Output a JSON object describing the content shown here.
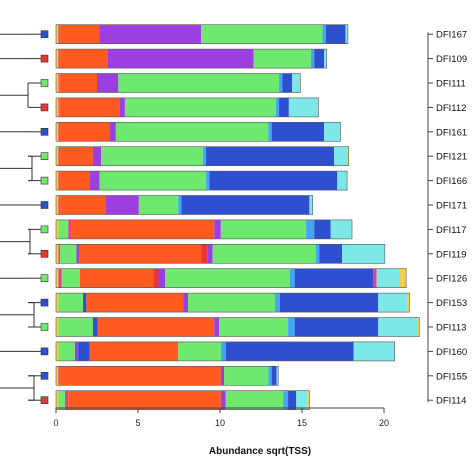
{
  "chart_data": {
    "type": "bar",
    "orientation": "horizontal",
    "stacked": true,
    "xlabel": "Abundance sqrt(TSS)",
    "ylabel": "",
    "xlim": [
      0,
      22
    ],
    "xticks": [
      "0",
      "5",
      "10",
      "15",
      "20"
    ],
    "grid": false,
    "legend": "none",
    "samples": [
      {
        "label": "DFI167",
        "marker": "#2f4fd1",
        "segments": [
          {
            "c": "#f2cf4a",
            "v": 0.15
          },
          {
            "c": "#e83e8c",
            "v": 0.1
          },
          {
            "c": "#ff5a1f",
            "v": 2.4
          },
          {
            "c": "#9b3fe0",
            "v": 6.2
          },
          {
            "c": "#6ee86e",
            "v": 7.4
          },
          {
            "c": "#42a8f0",
            "v": 0.2
          },
          {
            "c": "#2f4fd1",
            "v": 1.2
          },
          {
            "c": "#7ce8e8",
            "v": 0.15
          }
        ]
      },
      {
        "label": "DFI109",
        "marker": "#e83535",
        "segments": [
          {
            "c": "#f2cf4a",
            "v": 0.15
          },
          {
            "c": "#e83e8c",
            "v": 0.1
          },
          {
            "c": "#ff5a1f",
            "v": 2.9
          },
          {
            "c": "#9b3fe0",
            "v": 8.9
          },
          {
            "c": "#6ee86e",
            "v": 3.5
          },
          {
            "c": "#42a8f0",
            "v": 0.2
          },
          {
            "c": "#2f4fd1",
            "v": 0.6
          },
          {
            "c": "#7ce8e8",
            "v": 0.15
          }
        ]
      },
      {
        "label": "DFI111",
        "marker": "#6ee86e",
        "segments": [
          {
            "c": "#f2cf4a",
            "v": 0.15
          },
          {
            "c": "#e83e8c",
            "v": 0.05
          },
          {
            "c": "#ff5a1f",
            "v": 2.3
          },
          {
            "c": "#9b3fe0",
            "v": 1.3
          },
          {
            "c": "#6ee86e",
            "v": 9.8
          },
          {
            "c": "#42a8f0",
            "v": 0.2
          },
          {
            "c": "#2f4fd1",
            "v": 0.6
          },
          {
            "c": "#7ce8e8",
            "v": 0.5
          }
        ]
      },
      {
        "label": "DFI112",
        "marker": "#e83535",
        "segments": [
          {
            "c": "#f2cf4a",
            "v": 0.15
          },
          {
            "c": "#e83e8c",
            "v": 0.05
          },
          {
            "c": "#ff5a1f",
            "v": 3.7
          },
          {
            "c": "#9b3fe0",
            "v": 0.3
          },
          {
            "c": "#6ee86e",
            "v": 9.2
          },
          {
            "c": "#42a8f0",
            "v": 0.2
          },
          {
            "c": "#2f4fd1",
            "v": 0.6
          },
          {
            "c": "#7ce8e8",
            "v": 1.8
          }
        ]
      },
      {
        "label": "DFI161",
        "marker": "#2f4fd1",
        "segments": [
          {
            "c": "#f2cf4a",
            "v": 0.15
          },
          {
            "c": "#e83e8c",
            "v": 0.1
          },
          {
            "c": "#ff5a1f",
            "v": 3.0
          },
          {
            "c": "#9b3fe0",
            "v": 0.4
          },
          {
            "c": "#6ee86e",
            "v": 9.3
          },
          {
            "c": "#42a8f0",
            "v": 0.2
          },
          {
            "c": "#2f4fd1",
            "v": 3.2
          },
          {
            "c": "#7ce8e8",
            "v": 1.0
          }
        ]
      },
      {
        "label": "DFI121",
        "marker": "#6ee86e",
        "segments": [
          {
            "c": "#f2cf4a",
            "v": 0.15
          },
          {
            "c": "#e83e8c",
            "v": 0.1
          },
          {
            "c": "#ff5a1f",
            "v": 2.0
          },
          {
            "c": "#9b3fe0",
            "v": 0.5
          },
          {
            "c": "#6ee86e",
            "v": 6.2
          },
          {
            "c": "#42a8f0",
            "v": 0.2
          },
          {
            "c": "#2f4fd1",
            "v": 7.8
          },
          {
            "c": "#7ce8e8",
            "v": 0.8
          },
          {
            "c": "#f2cf4a",
            "v": 0.1
          }
        ]
      },
      {
        "label": "DFI166",
        "marker": "#6ee86e",
        "segments": [
          {
            "c": "#f2cf4a",
            "v": 0.15
          },
          {
            "c": "#e83e8c",
            "v": 0.1
          },
          {
            "c": "#ff5a1f",
            "v": 1.8
          },
          {
            "c": "#9b3fe0",
            "v": 0.6
          },
          {
            "c": "#6ee86e",
            "v": 6.5
          },
          {
            "c": "#42a8f0",
            "v": 0.2
          },
          {
            "c": "#2f4fd1",
            "v": 7.8
          },
          {
            "c": "#7ce8e8",
            "v": 0.6
          }
        ]
      },
      {
        "label": "DFI171",
        "marker": "#2f4fd1",
        "segments": [
          {
            "c": "#f2cf4a",
            "v": 0.15
          },
          {
            "c": "#e83e8c",
            "v": 0.1
          },
          {
            "c": "#ff5a1f",
            "v": 2.8
          },
          {
            "c": "#9b3fe0",
            "v": 2.0
          },
          {
            "c": "#6ee86e",
            "v": 2.4
          },
          {
            "c": "#42a8f0",
            "v": 0.2
          },
          {
            "c": "#2f4fd1",
            "v": 7.8
          },
          {
            "c": "#7ce8e8",
            "v": 0.2
          }
        ]
      },
      {
        "label": "DFI117",
        "marker": "#6ee86e",
        "segments": [
          {
            "c": "#f2cf4a",
            "v": 0.15
          },
          {
            "c": "#6ee86e",
            "v": 0.6
          },
          {
            "c": "#e83e8c",
            "v": 0.2
          },
          {
            "c": "#ff5a1f",
            "v": 8.7
          },
          {
            "c": "#9b3fe0",
            "v": 0.4
          },
          {
            "c": "#6ee86e",
            "v": 5.2
          },
          {
            "c": "#42a8f0",
            "v": 0.5
          },
          {
            "c": "#2f4fd1",
            "v": 1.0
          },
          {
            "c": "#7ce8e8",
            "v": 1.3
          }
        ]
      },
      {
        "label": "DFI119",
        "marker": "#e83535",
        "segments": [
          {
            "c": "#f2cf4a",
            "v": 0.15
          },
          {
            "c": "#e83e8c",
            "v": 0.1
          },
          {
            "c": "#6ee86e",
            "v": 1.0
          },
          {
            "c": "#9b3fe0",
            "v": 0.2
          },
          {
            "c": "#ff5a1f",
            "v": 7.4
          },
          {
            "c": "#e83535",
            "v": 0.4
          },
          {
            "c": "#9b3fe0",
            "v": 0.3
          },
          {
            "c": "#6ee86e",
            "v": 6.3
          },
          {
            "c": "#42a8f0",
            "v": 0.2
          },
          {
            "c": "#2f4fd1",
            "v": 1.4
          },
          {
            "c": "#7ce8e8",
            "v": 2.6
          }
        ]
      },
      {
        "label": "DFI126",
        "marker": "#6ee86e",
        "segments": [
          {
            "c": "#f2cf4a",
            "v": 0.15
          },
          {
            "c": "#e83e8c",
            "v": 0.2
          },
          {
            "c": "#6ee86e",
            "v": 1.1
          },
          {
            "c": "#ff5a1f",
            "v": 4.5
          },
          {
            "c": "#e83535",
            "v": 0.3
          },
          {
            "c": "#9b3fe0",
            "v": 0.4
          },
          {
            "c": "#6ee86e",
            "v": 7.6
          },
          {
            "c": "#42a8f0",
            "v": 0.3
          },
          {
            "c": "#2f4fd1",
            "v": 4.8
          },
          {
            "c": "#e83e8c",
            "v": 0.2
          },
          {
            "c": "#7ce8e8",
            "v": 1.4
          },
          {
            "c": "#f2cf4a",
            "v": 0.4
          }
        ]
      },
      {
        "label": "DFI153",
        "marker": "#2f4fd1",
        "segments": [
          {
            "c": "#f2cf4a",
            "v": 0.15
          },
          {
            "c": "#6ee86e",
            "v": 1.5
          },
          {
            "c": "#2f4fd1",
            "v": 0.2
          },
          {
            "c": "#ff5a1f",
            "v": 5.9
          },
          {
            "c": "#9b3fe0",
            "v": 0.3
          },
          {
            "c": "#6ee86e",
            "v": 5.3
          },
          {
            "c": "#42a8f0",
            "v": 0.3
          },
          {
            "c": "#2f4fd1",
            "v": 6.0
          },
          {
            "c": "#7ce8e8",
            "v": 1.8
          },
          {
            "c": "#f2cf4a",
            "v": 0.1
          }
        ]
      },
      {
        "label": "DFI113",
        "marker": "#6ee86e",
        "segments": [
          {
            "c": "#f2cf4a",
            "v": 0.15
          },
          {
            "c": "#6ee86e",
            "v": 2.1
          },
          {
            "c": "#2f4fd1",
            "v": 0.3
          },
          {
            "c": "#ff5a1f",
            "v": 7.1
          },
          {
            "c": "#9b3fe0",
            "v": 0.3
          },
          {
            "c": "#6ee86e",
            "v": 4.2
          },
          {
            "c": "#42a8f0",
            "v": 0.4
          },
          {
            "c": "#2f4fd1",
            "v": 5.1
          },
          {
            "c": "#7ce8e8",
            "v": 2.4
          },
          {
            "c": "#f2cf4a",
            "v": 0.1
          }
        ]
      },
      {
        "label": "DFI160",
        "marker": "#2f4fd1",
        "segments": [
          {
            "c": "#f2cf4a",
            "v": 0.15
          },
          {
            "c": "#6ee86e",
            "v": 1.0
          },
          {
            "c": "#9b3fe0",
            "v": 0.2
          },
          {
            "c": "#2f4fd1",
            "v": 0.7
          },
          {
            "c": "#ff5a1f",
            "v": 5.4
          },
          {
            "c": "#6ee86e",
            "v": 2.6
          },
          {
            "c": "#42a8f0",
            "v": 0.3
          },
          {
            "c": "#2f4fd1",
            "v": 7.8
          },
          {
            "c": "#7ce8e8",
            "v": 2.5
          }
        ]
      },
      {
        "label": "DFI155",
        "marker": "#2f4fd1",
        "segments": [
          {
            "c": "#f2cf4a",
            "v": 0.15
          },
          {
            "c": "#e83e8c",
            "v": 0.1
          },
          {
            "c": "#ff5a1f",
            "v": 9.8
          },
          {
            "c": "#9b3fe0",
            "v": 0.2
          },
          {
            "c": "#6ee86e",
            "v": 2.7
          },
          {
            "c": "#42a8f0",
            "v": 0.2
          },
          {
            "c": "#2f4fd1",
            "v": 0.3
          },
          {
            "c": "#7ce8e8",
            "v": 0.1
          }
        ]
      },
      {
        "label": "DFI114",
        "marker": "#e83535",
        "segments": [
          {
            "c": "#f2cf4a",
            "v": 0.15
          },
          {
            "c": "#6ee86e",
            "v": 0.4
          },
          {
            "c": "#e83e8c",
            "v": 0.2
          },
          {
            "c": "#ff5a1f",
            "v": 9.3
          },
          {
            "c": "#9b3fe0",
            "v": 0.3
          },
          {
            "c": "#6ee86e",
            "v": 3.5
          },
          {
            "c": "#42a8f0",
            "v": 0.3
          },
          {
            "c": "#2f4fd1",
            "v": 0.5
          },
          {
            "c": "#7ce8e8",
            "v": 0.7
          },
          {
            "c": "#f2cf4a",
            "v": 0.1
          }
        ]
      }
    ]
  }
}
